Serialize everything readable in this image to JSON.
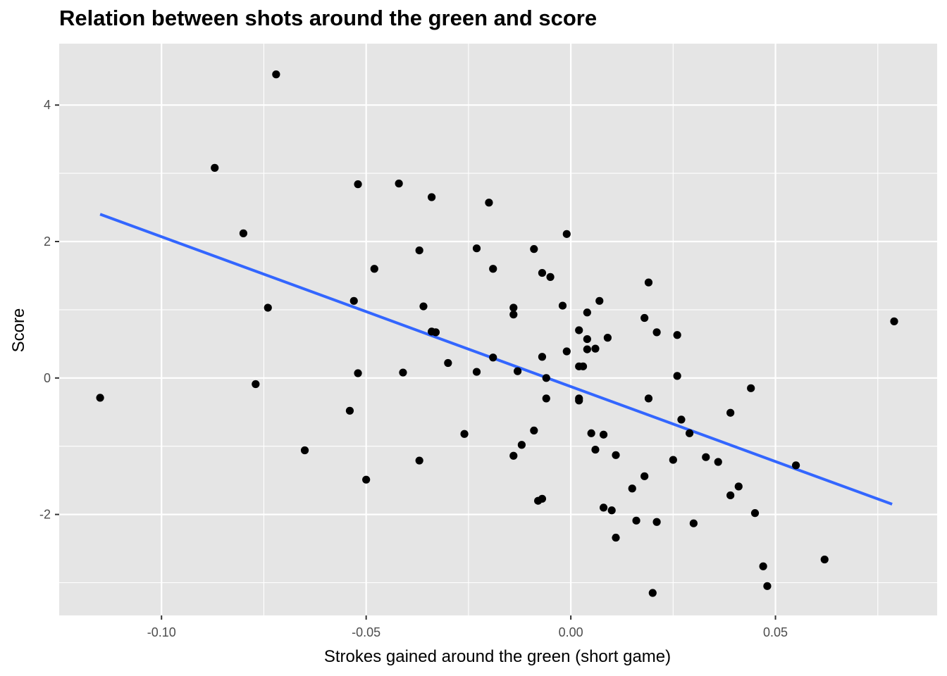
{
  "chart_data": {
    "type": "scatter",
    "title": "Relation between shots around the green and score",
    "xlabel": "Strokes gained around the green (short game)",
    "ylabel": "Score",
    "xlim": [
      -0.125,
      0.0895
    ],
    "ylim": [
      -3.48,
      4.9
    ],
    "xticks": [
      -0.1,
      -0.05,
      0.0,
      0.05
    ],
    "xtick_labels": [
      "-0.10",
      "-0.05",
      "0.00",
      "0.05"
    ],
    "yticks": [
      -2,
      0,
      2,
      4
    ],
    "ytick_labels": [
      "-2",
      "0",
      "2",
      "4"
    ],
    "x_minor": [
      -0.075,
      -0.025,
      0.025,
      0.075
    ],
    "y_minor": [
      -3,
      -1,
      1,
      3
    ],
    "grid": true,
    "background": "#e5e5e5",
    "point_color": "#000000",
    "trend_color": "#3366ff",
    "trend_line": {
      "x": [
        -0.115,
        0.0785
      ],
      "y": [
        2.4,
        -1.85
      ]
    },
    "points": [
      {
        "x": -0.072,
        "y": 4.45
      },
      {
        "x": -0.087,
        "y": 3.08
      },
      {
        "x": -0.052,
        "y": 2.84
      },
      {
        "x": -0.042,
        "y": 2.85
      },
      {
        "x": -0.034,
        "y": 2.65
      },
      {
        "x": -0.02,
        "y": 2.57
      },
      {
        "x": -0.08,
        "y": 2.12
      },
      {
        "x": -0.001,
        "y": 2.11
      },
      {
        "x": -0.037,
        "y": 1.87
      },
      {
        "x": -0.023,
        "y": 1.9
      },
      {
        "x": -0.009,
        "y": 1.89
      },
      {
        "x": -0.048,
        "y": 1.6
      },
      {
        "x": -0.019,
        "y": 1.6
      },
      {
        "x": -0.007,
        "y": 1.54
      },
      {
        "x": -0.005,
        "y": 1.48
      },
      {
        "x": 0.019,
        "y": 1.4
      },
      {
        "x": -0.053,
        "y": 1.13
      },
      {
        "x": 0.007,
        "y": 1.13
      },
      {
        "x": -0.074,
        "y": 1.03
      },
      {
        "x": -0.036,
        "y": 1.05
      },
      {
        "x": -0.014,
        "y": 1.03
      },
      {
        "x": -0.014,
        "y": 0.93
      },
      {
        "x": -0.002,
        "y": 1.06
      },
      {
        "x": 0.004,
        "y": 0.96
      },
      {
        "x": 0.018,
        "y": 0.88
      },
      {
        "x": -0.034,
        "y": 0.68
      },
      {
        "x": -0.033,
        "y": 0.67
      },
      {
        "x": 0.002,
        "y": 0.7
      },
      {
        "x": 0.021,
        "y": 0.67
      },
      {
        "x": 0.026,
        "y": 0.63
      },
      {
        "x": 0.079,
        "y": 0.83
      },
      {
        "x": 0.004,
        "y": 0.57
      },
      {
        "x": 0.009,
        "y": 0.59
      },
      {
        "x": 0.004,
        "y": 0.42
      },
      {
        "x": 0.006,
        "y": 0.43
      },
      {
        "x": -0.001,
        "y": 0.39
      },
      {
        "x": -0.019,
        "y": 0.3
      },
      {
        "x": -0.007,
        "y": 0.31
      },
      {
        "x": -0.03,
        "y": 0.22
      },
      {
        "x": 0.002,
        "y": 0.17
      },
      {
        "x": 0.003,
        "y": 0.17
      },
      {
        "x": -0.052,
        "y": 0.07
      },
      {
        "x": -0.041,
        "y": 0.08
      },
      {
        "x": -0.023,
        "y": 0.09
      },
      {
        "x": -0.013,
        "y": 0.1
      },
      {
        "x": -0.006,
        "y": 0.0
      },
      {
        "x": 0.026,
        "y": 0.03
      },
      {
        "x": -0.115,
        "y": -0.29
      },
      {
        "x": -0.077,
        "y": -0.09
      },
      {
        "x": -0.006,
        "y": -0.3
      },
      {
        "x": 0.002,
        "y": -0.3
      },
      {
        "x": 0.002,
        "y": -0.33
      },
      {
        "x": 0.019,
        "y": -0.3
      },
      {
        "x": 0.044,
        "y": -0.15
      },
      {
        "x": -0.054,
        "y": -0.48
      },
      {
        "x": 0.039,
        "y": -0.51
      },
      {
        "x": 0.027,
        "y": -0.61
      },
      {
        "x": -0.026,
        "y": -0.82
      },
      {
        "x": -0.009,
        "y": -0.77
      },
      {
        "x": 0.005,
        "y": -0.81
      },
      {
        "x": 0.008,
        "y": -0.83
      },
      {
        "x": 0.029,
        "y": -0.81
      },
      {
        "x": -0.065,
        "y": -1.06
      },
      {
        "x": -0.012,
        "y": -0.98
      },
      {
        "x": 0.006,
        "y": -1.05
      },
      {
        "x": -0.014,
        "y": -1.14
      },
      {
        "x": 0.011,
        "y": -1.13
      },
      {
        "x": -0.037,
        "y": -1.21
      },
      {
        "x": 0.025,
        "y": -1.2
      },
      {
        "x": 0.033,
        "y": -1.16
      },
      {
        "x": 0.036,
        "y": -1.23
      },
      {
        "x": 0.055,
        "y": -1.28
      },
      {
        "x": -0.05,
        "y": -1.49
      },
      {
        "x": 0.018,
        "y": -1.44
      },
      {
        "x": 0.015,
        "y": -1.62
      },
      {
        "x": 0.041,
        "y": -1.59
      },
      {
        "x": 0.039,
        "y": -1.72
      },
      {
        "x": -0.008,
        "y": -1.8
      },
      {
        "x": -0.007,
        "y": -1.77
      },
      {
        "x": 0.008,
        "y": -1.9
      },
      {
        "x": 0.01,
        "y": -1.94
      },
      {
        "x": 0.045,
        "y": -1.98
      },
      {
        "x": 0.016,
        "y": -2.09
      },
      {
        "x": 0.021,
        "y": -2.11
      },
      {
        "x": 0.03,
        "y": -2.13
      },
      {
        "x": 0.011,
        "y": -2.34
      },
      {
        "x": 0.062,
        "y": -2.66
      },
      {
        "x": 0.047,
        "y": -2.76
      },
      {
        "x": 0.048,
        "y": -3.05
      },
      {
        "x": 0.02,
        "y": -3.15
      }
    ]
  }
}
